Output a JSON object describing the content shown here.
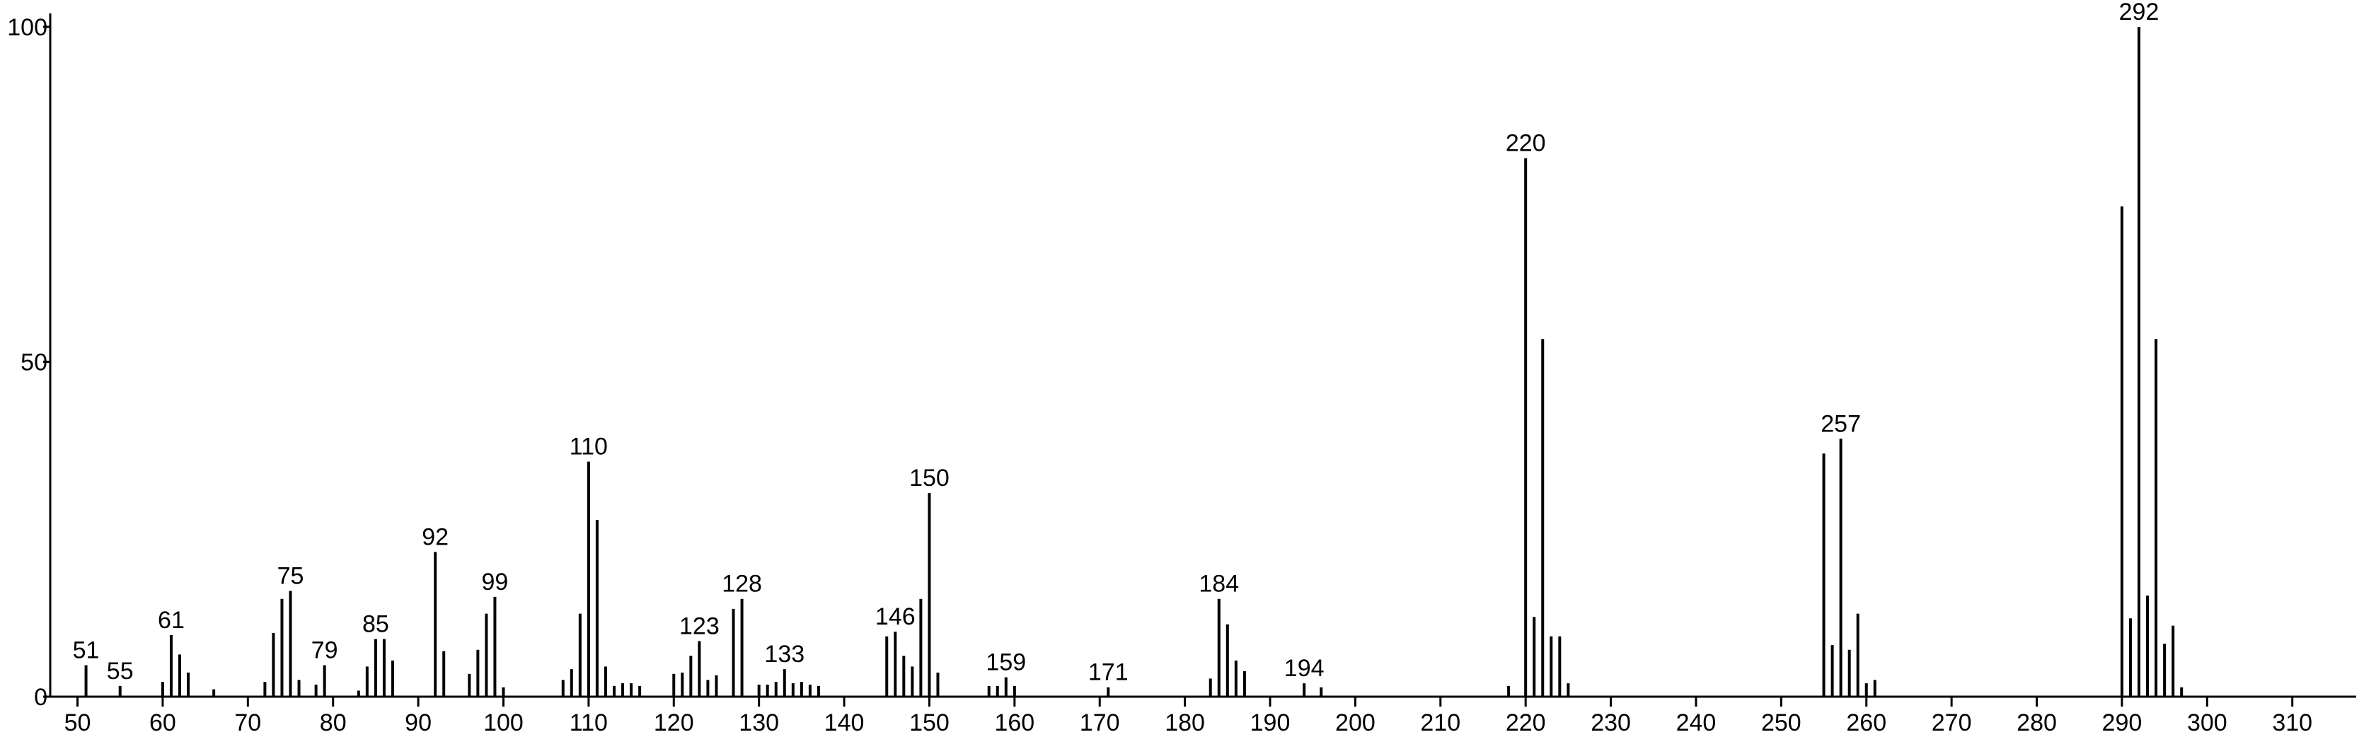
{
  "chart_data": {
    "type": "bar",
    "x": [
      51,
      55,
      60,
      61,
      62,
      63,
      66,
      72,
      73,
      74,
      75,
      76,
      78,
      79,
      83,
      84,
      85,
      86,
      87,
      92,
      93,
      96,
      97,
      98,
      99,
      100,
      107,
      108,
      109,
      110,
      111,
      112,
      113,
      114,
      115,
      116,
      120,
      121,
      122,
      123,
      124,
      125,
      127,
      128,
      130,
      131,
      132,
      133,
      134,
      135,
      136,
      137,
      145,
      146,
      147,
      148,
      149,
      150,
      151,
      157,
      158,
      159,
      160,
      171,
      183,
      184,
      185,
      186,
      187,
      194,
      196,
      218,
      220,
      221,
      222,
      223,
      224,
      225,
      255,
      256,
      257,
      258,
      259,
      260,
      261,
      290,
      291,
      292,
      293,
      294,
      295,
      296,
      297
    ],
    "values": [
      4.7,
      1.6,
      2.2,
      9.2,
      6.3,
      3.6,
      1.1,
      2.2,
      9.5,
      14.6,
      15.8,
      2.5,
      1.8,
      4.7,
      0.9,
      4.5,
      8.6,
      8.6,
      5.4,
      21.6,
      6.8,
      3.4,
      7.0,
      12.4,
      14.9,
      1.4,
      2.5,
      4.1,
      12.4,
      35.1,
      26.4,
      4.5,
      1.6,
      2.0,
      2.0,
      1.6,
      3.4,
      3.6,
      6.1,
      8.3,
      2.5,
      3.2,
      13.1,
      14.6,
      1.8,
      1.8,
      2.2,
      4.1,
      2.0,
      2.2,
      1.8,
      1.6,
      9.0,
      9.7,
      6.1,
      4.5,
      14.6,
      30.4,
      3.6,
      1.6,
      1.6,
      2.9,
      1.6,
      1.4,
      2.7,
      14.6,
      10.8,
      5.4,
      3.8,
      2.0,
      1.4,
      1.6,
      80.4,
      11.9,
      53.4,
      9.0,
      9.0,
      2.0,
      36.3,
      7.7,
      38.5,
      7.0,
      12.4,
      2.0,
      2.5,
      73.2,
      11.7,
      100,
      15.1,
      53.4,
      7.9,
      10.6,
      1.4
    ],
    "annotations": [
      51,
      55,
      61,
      75,
      79,
      85,
      92,
      99,
      110,
      123,
      128,
      133,
      146,
      150,
      159,
      171,
      184,
      194,
      220,
      257,
      292
    ],
    "color": "#000000",
    "xlim": [
      46.8,
      317.5
    ],
    "ylim": [
      0,
      102
    ],
    "xticks": [
      50,
      60,
      70,
      80,
      90,
      100,
      110,
      120,
      130,
      140,
      150,
      160,
      170,
      180,
      190,
      200,
      210,
      220,
      230,
      240,
      250,
      260,
      270,
      280,
      290,
      300,
      310
    ],
    "yticks": [
      0,
      50,
      100
    ]
  }
}
